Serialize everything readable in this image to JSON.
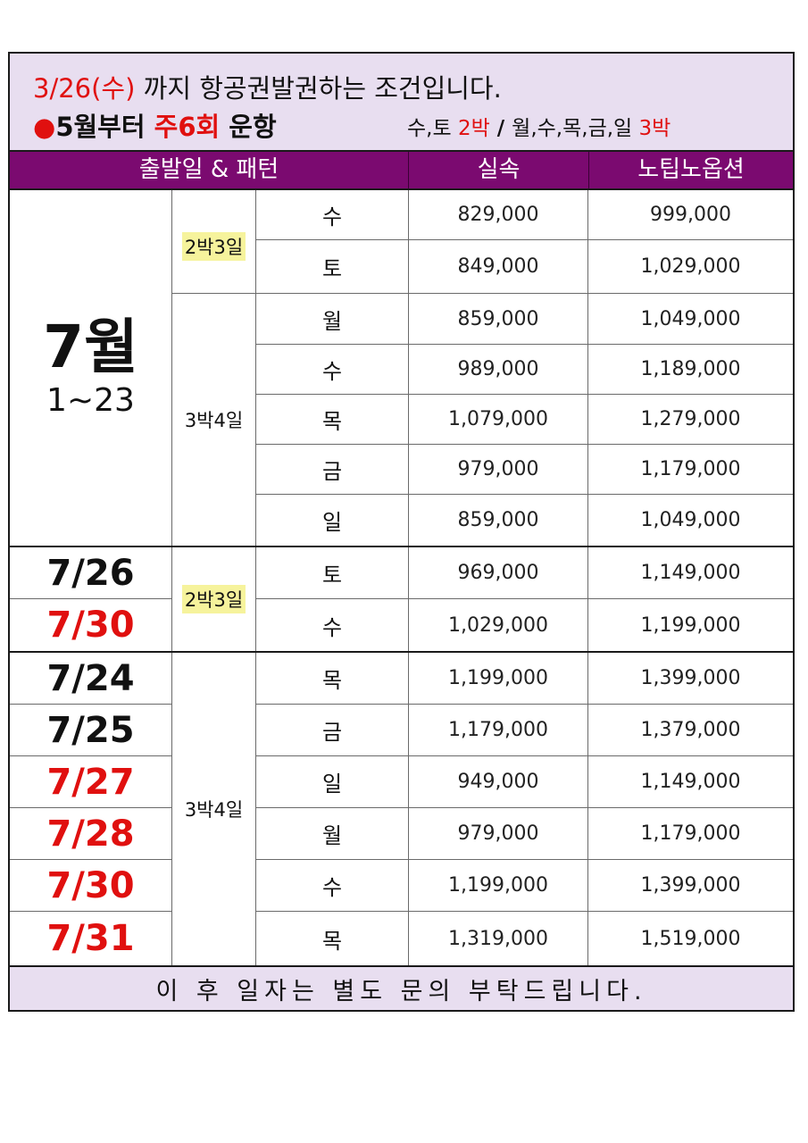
{
  "notice": {
    "deadline": "3/26(수)",
    "deadline_text": " 까지 항공권발권하는 조건입니다.",
    "bullet": "●",
    "from": "5월부터 ",
    "freq": "주6회",
    "ops": " 운항",
    "days_short": "수,토 ",
    "nights_short": "2박",
    "divider": "/",
    "days_long": "월,수,목,금,일 ",
    "nights_long": "3박"
  },
  "headers": [
    "출발일 & 패턴",
    "실속",
    "노팁노옵션"
  ],
  "month_block": {
    "month": "7월",
    "range": "1~23",
    "patterns": [
      "2박3일",
      "3박4일"
    ],
    "rows": [
      {
        "day": "수",
        "basic": "829,000",
        "premium": "999,000"
      },
      {
        "day": "토",
        "basic": "849,000",
        "premium": "1,029,000"
      },
      {
        "day": "월",
        "basic": "859,000",
        "premium": "1,049,000"
      },
      {
        "day": "수",
        "basic": "989,000",
        "premium": "1,189,000"
      },
      {
        "day": "목",
        "basic": "1,079,000",
        "premium": "1,279,000"
      },
      {
        "day": "금",
        "basic": "979,000",
        "premium": "1,179,000"
      },
      {
        "day": "일",
        "basic": "859,000",
        "premium": "1,049,000"
      }
    ]
  },
  "short_block": {
    "pattern": "2박3일",
    "rows": [
      {
        "date": "7/26",
        "date_color": "black",
        "day": "토",
        "basic": "969,000",
        "premium": "1,149,000"
      },
      {
        "date": "7/30",
        "date_color": "red",
        "day": "수",
        "basic": "1,029,000",
        "premium": "1,199,000"
      }
    ]
  },
  "long_block": {
    "pattern": "3박4일",
    "rows": [
      {
        "date": "7/24",
        "date_color": "black",
        "day": "목",
        "basic": "1,199,000",
        "premium": "1,399,000"
      },
      {
        "date": "7/25",
        "date_color": "black",
        "day": "금",
        "basic": "1,179,000",
        "premium": "1,379,000"
      },
      {
        "date": "7/27",
        "date_color": "red",
        "day": "일",
        "basic": "949,000",
        "premium": "1,149,000"
      },
      {
        "date": "7/28",
        "date_color": "red",
        "day": "월",
        "basic": "979,000",
        "premium": "1,179,000"
      },
      {
        "date": "7/30",
        "date_color": "red",
        "day": "수",
        "basic": "1,199,000",
        "premium": "1,399,000"
      },
      {
        "date": "7/31",
        "date_color": "red",
        "day": "목",
        "basic": "1,319,000",
        "premium": "1,519,000"
      }
    ]
  },
  "footer": "이 후 일자는 별도 문의 부탁드립니다.",
  "colors": {
    "header_bg": "#7b0a70",
    "panel_bg": "#e8def0",
    "accent_red": "#e0100f",
    "highlight": "#f6f39c"
  }
}
